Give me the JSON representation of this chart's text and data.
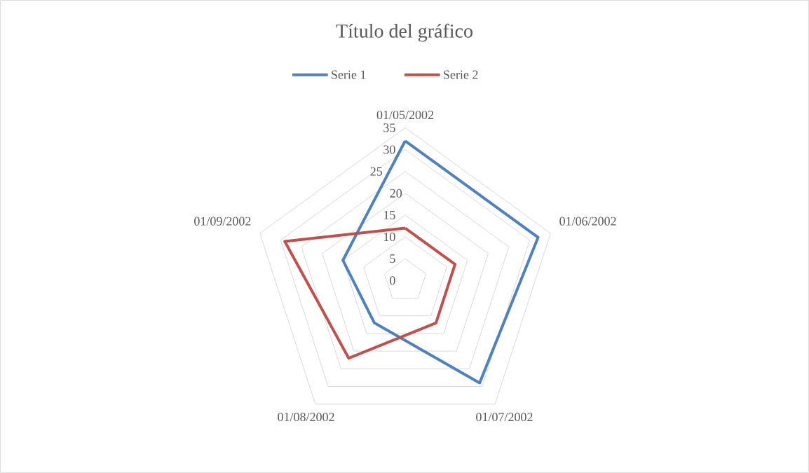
{
  "chart_data": {
    "type": "radar",
    "title": "Título del gráfico",
    "categories": [
      "01/05/2002",
      "01/06/2002",
      "01/07/2002",
      "01/08/2002",
      "01/09/2002"
    ],
    "series": [
      {
        "name": "Serie 1",
        "color": "#4f81bd",
        "values": [
          32,
          32,
          29,
          12,
          15
        ]
      },
      {
        "name": "Serie 2",
        "color": "#c0504d",
        "values": [
          12,
          12,
          12,
          22,
          29
        ]
      }
    ],
    "ylim": [
      0,
      35
    ],
    "yticks": [
      0,
      5,
      10,
      15,
      20,
      25,
      30,
      35
    ],
    "grid": true,
    "legend": "top"
  }
}
